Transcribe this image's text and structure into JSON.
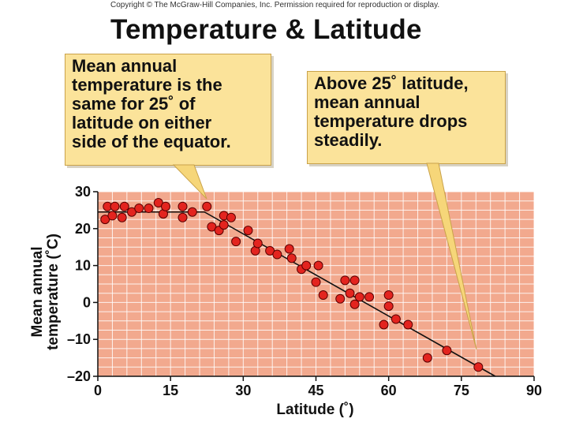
{
  "header": {
    "copyright": "Copyright © The McGraw-Hill Companies, Inc. Permission required for reproduction or display.",
    "title": "Temperature & Latitude"
  },
  "callouts": {
    "left": [
      "Mean annual",
      "temperature is the",
      "same for 25˚ of",
      "latitude on either",
      "side of the equator."
    ],
    "right": [
      "Above 25˚ latitude,",
      "mean annual",
      "temperature drops",
      "steadily."
    ]
  },
  "colors": {
    "plot_background": "#f2a98e",
    "grid": "#ffffff",
    "point_fill": "#e3241f",
    "point_stroke": "#5a0000",
    "trend_line": "#111111",
    "callout_background": "#fbe39a"
  },
  "chart_data": {
    "type": "scatter",
    "xlabel": "Latitude (˚)",
    "ylabel_lines": [
      "Mean annual",
      "temperature (˚C)"
    ],
    "xlim": [
      0,
      90
    ],
    "ylim": [
      -20,
      30
    ],
    "x_ticks": [
      0,
      15,
      30,
      45,
      60,
      75,
      90
    ],
    "y_ticks": [
      30,
      20,
      10,
      0,
      -10,
      -20
    ],
    "grid": true,
    "series": [
      {
        "points": [
          [
            1.5,
            22.5
          ],
          [
            2,
            26
          ],
          [
            3,
            23.5
          ],
          [
            3.5,
            26
          ],
          [
            5,
            23
          ],
          [
            5.5,
            26
          ],
          [
            7,
            24.5
          ],
          [
            8.5,
            25.5
          ],
          [
            10.5,
            25.5
          ],
          [
            12.5,
            27
          ],
          [
            13.5,
            24
          ],
          [
            14,
            26
          ],
          [
            17.5,
            23
          ],
          [
            17.5,
            26
          ],
          [
            19.5,
            24.5
          ],
          [
            22.5,
            26
          ],
          [
            23.5,
            20.5
          ],
          [
            25,
            19.5
          ],
          [
            26,
            21
          ],
          [
            26,
            23.5
          ],
          [
            27.5,
            23
          ],
          [
            28.5,
            16.5
          ],
          [
            31,
            19.5
          ],
          [
            32.5,
            14
          ],
          [
            33,
            16
          ],
          [
            35.5,
            14
          ],
          [
            37,
            13
          ],
          [
            39.5,
            14.5
          ],
          [
            40,
            12
          ],
          [
            42,
            9
          ],
          [
            43,
            10
          ],
          [
            45,
            5.5
          ],
          [
            45.5,
            10
          ],
          [
            46.5,
            2
          ],
          [
            50,
            1
          ],
          [
            51,
            6
          ],
          [
            52,
            2.5
          ],
          [
            53,
            -0.5
          ],
          [
            53,
            6
          ],
          [
            54,
            1.5
          ],
          [
            56,
            1.5
          ],
          [
            59,
            -6
          ],
          [
            60,
            2
          ],
          [
            60,
            -1
          ],
          [
            61.5,
            -4.5
          ],
          [
            64,
            -6
          ],
          [
            68,
            -15
          ],
          [
            72,
            -13
          ],
          [
            78.5,
            -17.5
          ]
        ]
      }
    ],
    "trend_line": [
      [
        0,
        24.5
      ],
      [
        22,
        24.5
      ],
      [
        82,
        -20
      ]
    ]
  }
}
